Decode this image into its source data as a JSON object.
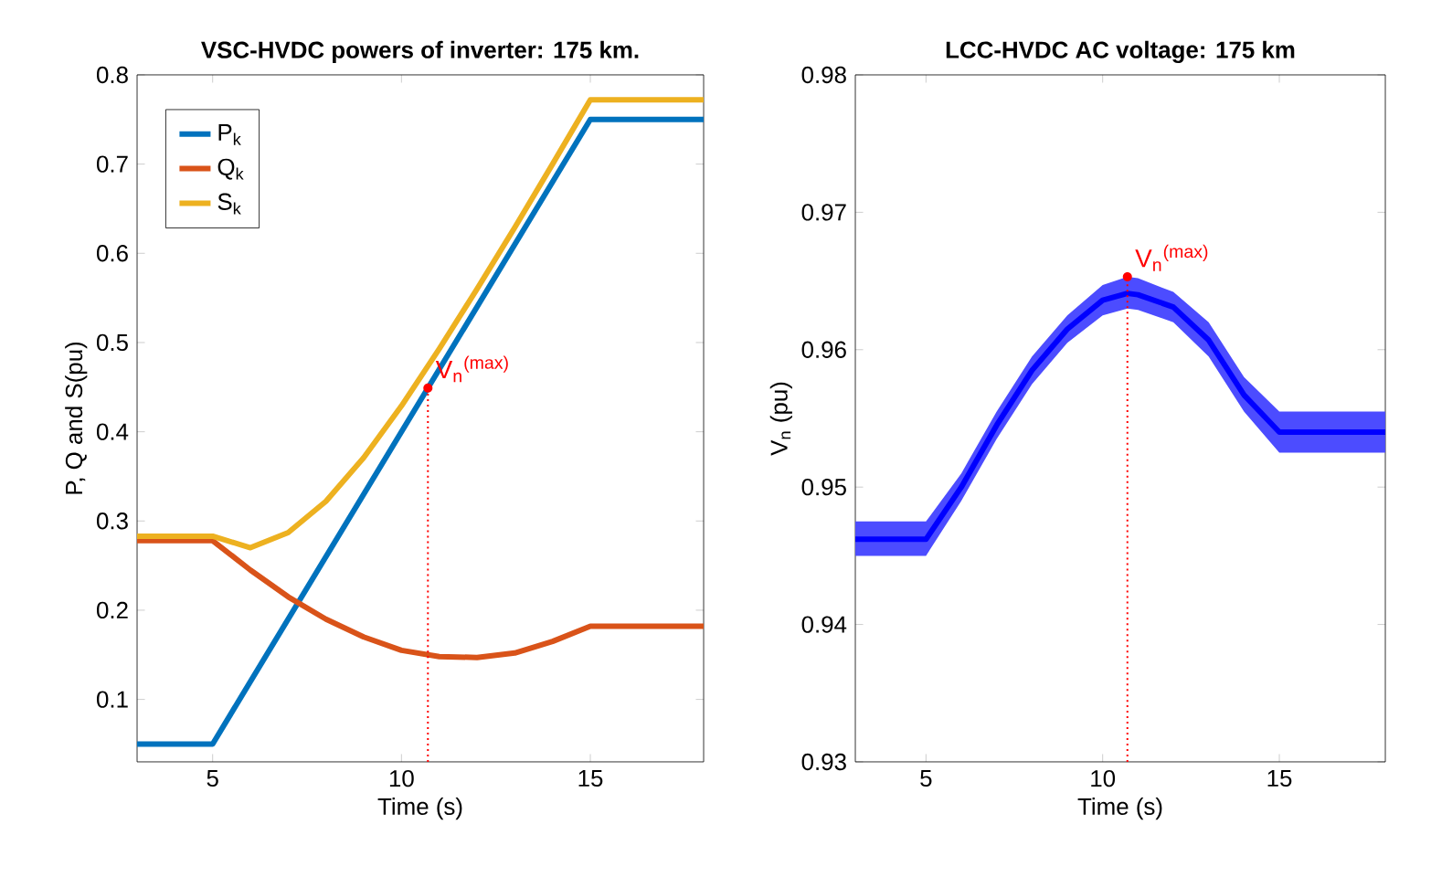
{
  "chart_data": [
    {
      "type": "line",
      "title": "VSC-HVDC powers of inverter: 175 km.",
      "xlabel": "Time (s)",
      "ylabel": "P, Q and S(pu)",
      "xlim": [
        3,
        18
      ],
      "xticks": [
        5,
        10,
        15
      ],
      "ylim": [
        0.03,
        0.8
      ],
      "yticks": [
        0.1,
        0.2,
        0.3,
        0.4,
        0.5,
        0.6,
        0.7,
        0.8
      ],
      "legend": "top left",
      "series": [
        {
          "name": "P$_{k}$",
          "color": "#0072bd",
          "x": [
            3,
            5,
            15,
            18
          ],
          "values": [
            0.05,
            0.05,
            0.75,
            0.75
          ]
        },
        {
          "name": "Q$_{k}$",
          "color": "#d95319",
          "x": [
            3,
            5,
            6,
            7,
            8,
            9,
            10,
            11,
            12,
            13,
            14,
            15,
            18
          ],
          "values": [
            0.278,
            0.278,
            0.245,
            0.215,
            0.19,
            0.17,
            0.155,
            0.148,
            0.147,
            0.152,
            0.165,
            0.182,
            0.182
          ]
        },
        {
          "name": "S$_{k}$",
          "color": "#edb120",
          "x": [
            3,
            5,
            6,
            7,
            8,
            9,
            10,
            11,
            12,
            13,
            14,
            15,
            18
          ],
          "values": [
            0.283,
            0.283,
            0.27,
            0.287,
            0.322,
            0.371,
            0.429,
            0.493,
            0.56,
            0.629,
            0.7,
            0.772,
            0.772
          ]
        }
      ],
      "ref_lines": [
        {
          "axis": "x",
          "value": 10.7,
          "color": "#ff0000",
          "line_style": "dotted"
        }
      ],
      "annotations": [
        {
          "text": "V$_{n}$$^{(max)}$",
          "x": 10.7,
          "y": 0.449
        }
      ]
    },
    {
      "type": "line",
      "title": "LCC-HVDC AC voltage: 175 km",
      "xlabel": "Time (s)",
      "ylabel": "V$_{n}$ (pu)",
      "xlim": [
        3,
        18
      ],
      "xticks": [
        5,
        10,
        15
      ],
      "ylim": [
        0.93,
        0.98
      ],
      "yticks": [
        0.93,
        0.94,
        0.95,
        0.96,
        0.97,
        0.98
      ],
      "series": [
        {
          "color": "#0000ff",
          "x": [
            3,
            5,
            6,
            7,
            8,
            9,
            10,
            10.7,
            11,
            12,
            13,
            14,
            15,
            18
          ],
          "values": [
            0.9462,
            0.9462,
            0.95,
            0.9545,
            0.9585,
            0.9615,
            0.9636,
            0.9641,
            0.964,
            0.9631,
            0.9607,
            0.9567,
            0.954,
            0.954
          ],
          "lower": [
            0.945,
            0.945,
            0.949,
            0.9535,
            0.9575,
            0.9605,
            0.9625,
            0.963,
            0.9629,
            0.962,
            0.9595,
            0.9555,
            0.9525,
            0.9525
          ],
          "upper": [
            0.9475,
            0.9475,
            0.951,
            0.9555,
            0.9595,
            0.9625,
            0.9647,
            0.9653,
            0.9652,
            0.9642,
            0.962,
            0.958,
            0.9555,
            0.9555
          ]
        }
      ],
      "ref_lines": [
        {
          "axis": "x",
          "value": 10.7,
          "color": "#ff0000",
          "line_style": "dotted"
        }
      ],
      "annotations": [
        {
          "text": "V$_{n}$$^{(max)}$",
          "x": 10.7,
          "y": 0.9653
        }
      ]
    }
  ]
}
